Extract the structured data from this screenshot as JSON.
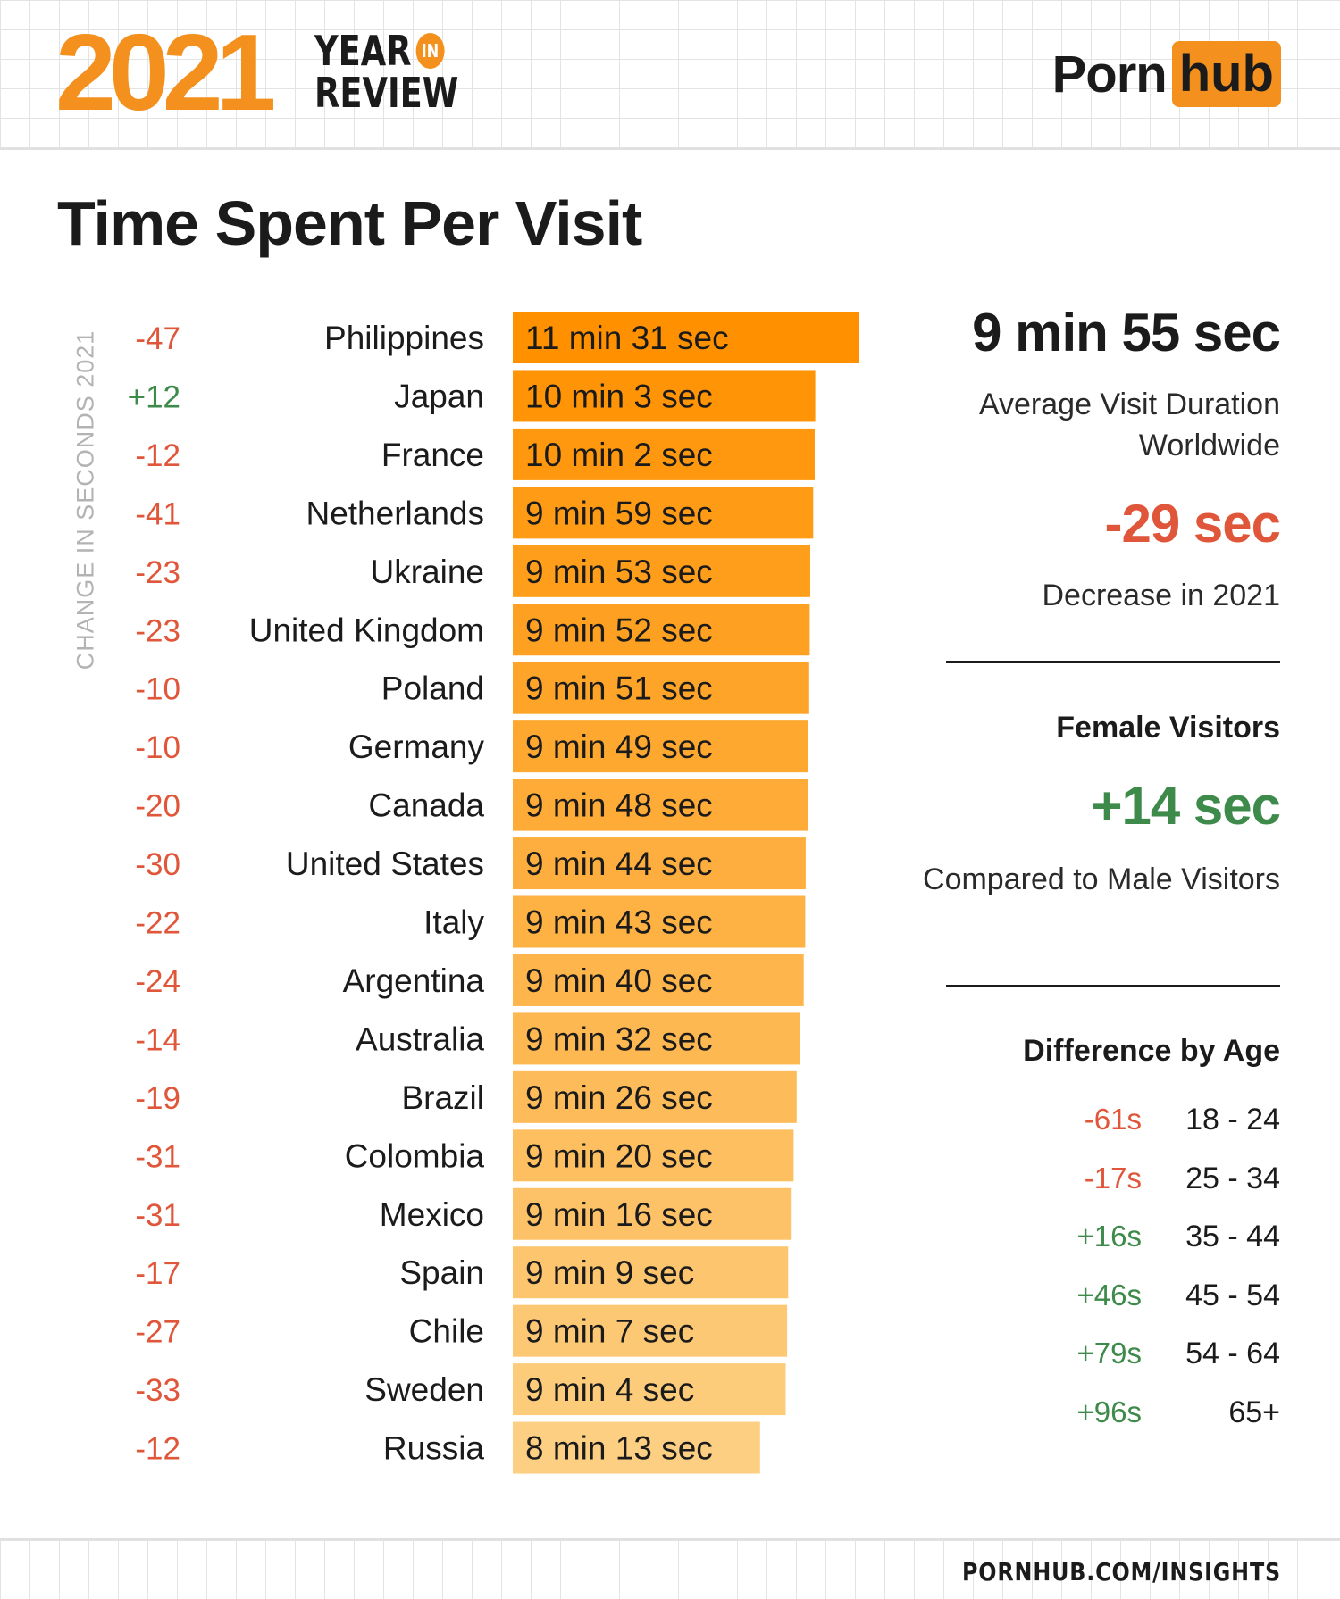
{
  "header": {
    "year": "2021",
    "year_in_review_line1": "YEAR",
    "year_in_review_in": "IN",
    "year_in_review_line2": "REVIEW",
    "brand_part1": "Porn",
    "brand_part2": "hub"
  },
  "title": "Time Spent Per Visit",
  "change_axis_label": "CHANGE IN SECONDS 2021",
  "summary": {
    "average_value": "9 min 55 sec",
    "average_label": "Average Visit Duration Worldwide",
    "decrease_value": "-29 sec",
    "decrease_label": "Decrease in 2021",
    "female_heading": "Female Visitors",
    "female_value": "+14 sec",
    "female_label": "Compared to Male Visitors",
    "age_heading": "Difference by Age"
  },
  "age_differences": [
    {
      "diff": "-61s",
      "range": "18 - 24"
    },
    {
      "diff": "-17s",
      "range": "25 - 34"
    },
    {
      "diff": "+16s",
      "range": "35 - 44"
    },
    {
      "diff": "+46s",
      "range": "45 - 54"
    },
    {
      "diff": "+79s",
      "range": "54 - 64"
    },
    {
      "diff": "+96s",
      "range": "65+"
    }
  ],
  "chart_data": {
    "type": "bar",
    "orientation": "horizontal",
    "title": "Time Spent Per Visit",
    "categories": [
      "Philippines",
      "Japan",
      "France",
      "Netherlands",
      "Ukraine",
      "United Kingdom",
      "Poland",
      "Germany",
      "Canada",
      "United States",
      "Italy",
      "Argentina",
      "Australia",
      "Brazil",
      "Colombia",
      "Mexico",
      "Spain",
      "Chile",
      "Sweden",
      "Russia"
    ],
    "values_seconds": [
      691,
      603,
      602,
      599,
      593,
      592,
      591,
      589,
      588,
      584,
      583,
      580,
      572,
      566,
      560,
      556,
      549,
      547,
      544,
      493
    ],
    "value_labels": [
      "11 min 31 sec",
      "10 min 3 sec",
      "10 min 2 sec",
      "9 min 59 sec",
      "9 min 53 sec",
      "9 min 52 sec",
      "9 min 51 sec",
      "9 min 49 sec",
      "9 min 48 sec",
      "9 min 44 sec",
      "9 min 43 sec",
      "9 min 40 sec",
      "9 min 32 sec",
      "9 min 26 sec",
      "9 min 20 sec",
      "9 min 16 sec",
      "9 min 9 sec",
      "9 min 7 sec",
      "9 min 4 sec",
      "8 min 13 sec"
    ],
    "change_seconds": [
      -47,
      12,
      -12,
      -41,
      -23,
      -23,
      -10,
      -10,
      -20,
      -30,
      -22,
      -24,
      -14,
      -19,
      -31,
      -31,
      -17,
      -27,
      -33,
      -12
    ],
    "change_labels": [
      "-47",
      "+12",
      "-12",
      "-41",
      "-23",
      "-23",
      "-10",
      "-10",
      "-20",
      "-30",
      "-22",
      "-24",
      "-14",
      "-19",
      "-31",
      "-31",
      "-17",
      "-27",
      "-33",
      "-12"
    ],
    "colors": {
      "bar_top": "#ff9100",
      "bar_bottom": "#fdcf82",
      "negative": "#e0563a",
      "positive": "#3d8a4a"
    },
    "grid": false,
    "legend": "none"
  },
  "footer": {
    "url": "PORNHUB.COM/INSIGHTS"
  }
}
